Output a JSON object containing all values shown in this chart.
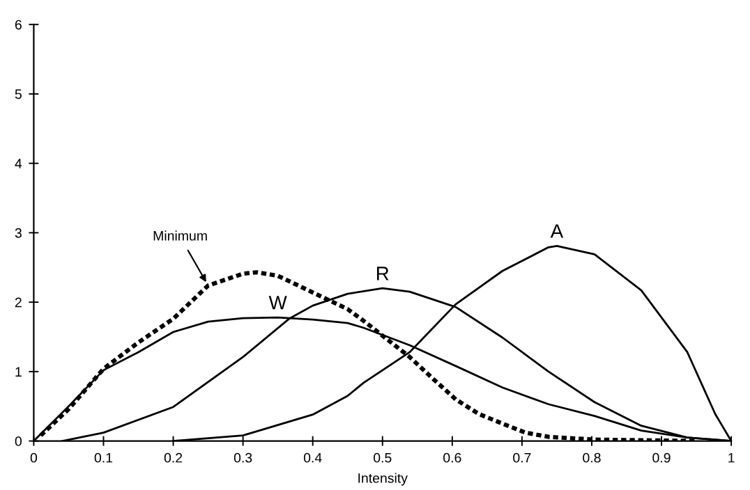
{
  "chart_data": {
    "type": "line",
    "xlabel": "Intensity",
    "xlim": [
      0,
      1
    ],
    "ylim": [
      0,
      6
    ],
    "xticks": [
      0,
      0.1,
      0.2,
      0.3,
      0.4,
      0.5,
      0.6,
      0.7,
      0.8,
      0.9,
      1
    ],
    "yticks": [
      0,
      1,
      2,
      3,
      4,
      5,
      6
    ],
    "grid": false,
    "legend": false,
    "marker": "none",
    "series": [
      {
        "name": "Minimum",
        "color": "#000000",
        "line_style": "dotted",
        "x": [
          0.01,
          0.05,
          0.1,
          0.15,
          0.2,
          0.25,
          0.3,
          0.32,
          0.35,
          0.4,
          0.45,
          0.473,
          0.539,
          0.572,
          0.605,
          0.638,
          0.672,
          0.705,
          0.738,
          0.804,
          0.95
        ],
        "values": [
          0.08,
          0.46,
          1.04,
          1.42,
          1.76,
          2.24,
          2.41,
          2.43,
          2.38,
          2.14,
          1.9,
          1.73,
          1.21,
          0.9,
          0.6,
          0.39,
          0.25,
          0.12,
          0.06,
          0.02,
          0
        ]
      },
      {
        "name": "W",
        "color": "#000000",
        "line_style": "solid",
        "x": [
          0,
          0.05,
          0.1,
          0.15,
          0.2,
          0.25,
          0.3,
          0.35,
          0.4,
          0.45,
          0.473,
          0.539,
          0.605,
          0.672,
          0.738,
          0.804,
          0.871,
          0.937,
          1
        ],
        "values": [
          0,
          0.5,
          1.02,
          1.28,
          1.57,
          1.72,
          1.77,
          1.78,
          1.75,
          1.7,
          1.63,
          1.38,
          1.08,
          0.77,
          0.53,
          0.36,
          0.15,
          0.05,
          0
        ]
      },
      {
        "name": "R",
        "color": "#000000",
        "line_style": "solid",
        "x": [
          0.041,
          0.1,
          0.2,
          0.3,
          0.366,
          0.4,
          0.45,
          0.5,
          0.539,
          0.605,
          0.672,
          0.738,
          0.804,
          0.871,
          0.937,
          1
        ],
        "values": [
          0,
          0.12,
          0.49,
          1.21,
          1.76,
          1.95,
          2.12,
          2.2,
          2.15,
          1.93,
          1.49,
          1.0,
          0.56,
          0.22,
          0.05,
          0
        ]
      },
      {
        "name": "A",
        "color": "#000000",
        "line_style": "solid",
        "x": [
          0.2,
          0.3,
          0.4,
          0.45,
          0.473,
          0.539,
          0.605,
          0.672,
          0.738,
          0.75,
          0.804,
          0.871,
          0.937,
          0.977,
          1
        ],
        "values": [
          0,
          0.08,
          0.38,
          0.65,
          0.84,
          1.28,
          1.97,
          2.45,
          2.79,
          2.81,
          2.69,
          2.17,
          1.28,
          0.39,
          0
        ]
      }
    ]
  }
}
